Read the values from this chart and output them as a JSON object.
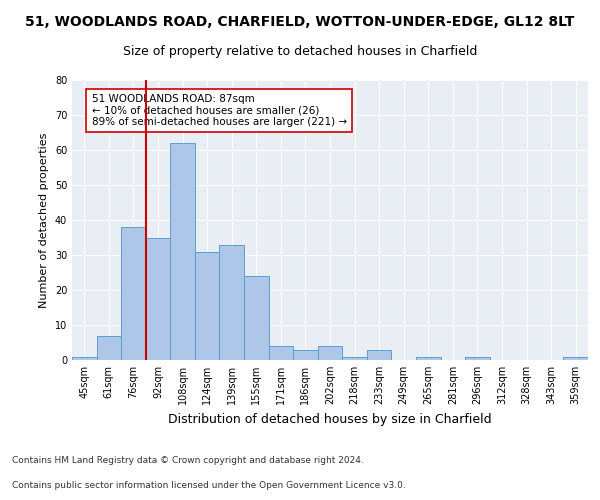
{
  "title": "51, WOODLANDS ROAD, CHARFIELD, WOTTON-UNDER-EDGE, GL12 8LT",
  "subtitle": "Size of property relative to detached houses in Charfield",
  "xlabel": "Distribution of detached houses by size in Charfield",
  "ylabel": "Number of detached properties",
  "bin_labels": [
    "45sqm",
    "61sqm",
    "76sqm",
    "92sqm",
    "108sqm",
    "124sqm",
    "139sqm",
    "155sqm",
    "171sqm",
    "186sqm",
    "202sqm",
    "218sqm",
    "233sqm",
    "249sqm",
    "265sqm",
    "281sqm",
    "296sqm",
    "312sqm",
    "328sqm",
    "343sqm",
    "359sqm"
  ],
  "bar_heights": [
    1,
    7,
    38,
    35,
    62,
    31,
    33,
    24,
    4,
    3,
    4,
    1,
    3,
    0,
    1,
    0,
    1,
    0,
    0,
    0,
    1
  ],
  "bar_color": "#aec6e8",
  "bar_edge_color": "#5a9fd4",
  "vline_x_idx": 3,
  "vline_color": "#cc0000",
  "annotation_text": "51 WOODLANDS ROAD: 87sqm\n← 10% of detached houses are smaller (26)\n89% of semi-detached houses are larger (221) →",
  "annotation_box_facecolor": "#ffffff",
  "annotation_box_edgecolor": "#cc0000",
  "ylim": [
    0,
    80
  ],
  "yticks": [
    0,
    10,
    20,
    30,
    40,
    50,
    60,
    70,
    80
  ],
  "bg_color": "#e8eef4",
  "footer_line1": "Contains HM Land Registry data © Crown copyright and database right 2024.",
  "footer_line2": "Contains public sector information licensed under the Open Government Licence v3.0.",
  "title_fontsize": 10,
  "subtitle_fontsize": 9,
  "xlabel_fontsize": 9,
  "ylabel_fontsize": 8,
  "tick_fontsize": 7,
  "annotation_fontsize": 7.5,
  "footer_fontsize": 6.5
}
